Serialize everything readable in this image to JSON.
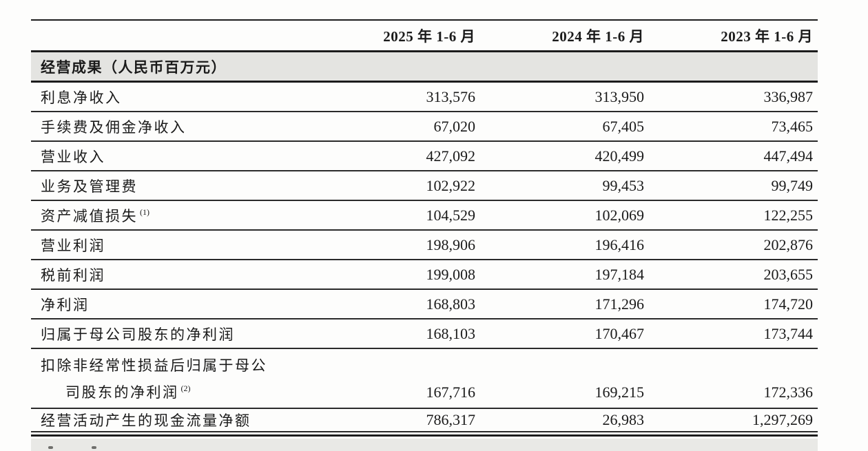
{
  "table": {
    "columns": [
      "2025 年 1-6 月",
      "2024 年 1-6 月",
      "2023 年 1-6 月"
    ],
    "section_header": "经营成果（人民币百万元）",
    "rows": [
      {
        "label": "利息净收入",
        "values": [
          "313,576",
          "313,950",
          "336,987"
        ]
      },
      {
        "label": "手续费及佣金净收入",
        "values": [
          "67,020",
          "67,405",
          "73,465"
        ]
      },
      {
        "label": "营业收入",
        "values": [
          "427,092",
          "420,499",
          "447,494"
        ]
      },
      {
        "label": "业务及管理费",
        "values": [
          "102,922",
          "99,453",
          "99,749"
        ]
      },
      {
        "label": "资产减值损失",
        "sup": "(1)",
        "values": [
          "104,529",
          "102,069",
          "122,255"
        ]
      },
      {
        "label": "营业利润",
        "values": [
          "198,906",
          "196,416",
          "202,876"
        ]
      },
      {
        "label": "税前利润",
        "values": [
          "199,008",
          "197,184",
          "203,655"
        ]
      },
      {
        "label": "净利润",
        "values": [
          "168,803",
          "171,296",
          "174,720"
        ]
      },
      {
        "label": "归属于母公司股东的净利润",
        "values": [
          "168,103",
          "170,467",
          "173,744"
        ]
      },
      {
        "label": "扣除非经常性损益后归属于母公",
        "label2": "司股东的净利润",
        "sup": "(2)",
        "values": [
          "167,716",
          "169,215",
          "172,336"
        ]
      },
      {
        "label": "经营活动产生的现金流量净额",
        "values": [
          "786,317",
          "26,983",
          "1,297,269"
        ]
      }
    ]
  },
  "colors": {
    "section_band_bg": "#e4e4e1",
    "rule": "#1c1c1c",
    "text": "#1a1a1a",
    "page_bg": "#fdfdfc"
  }
}
